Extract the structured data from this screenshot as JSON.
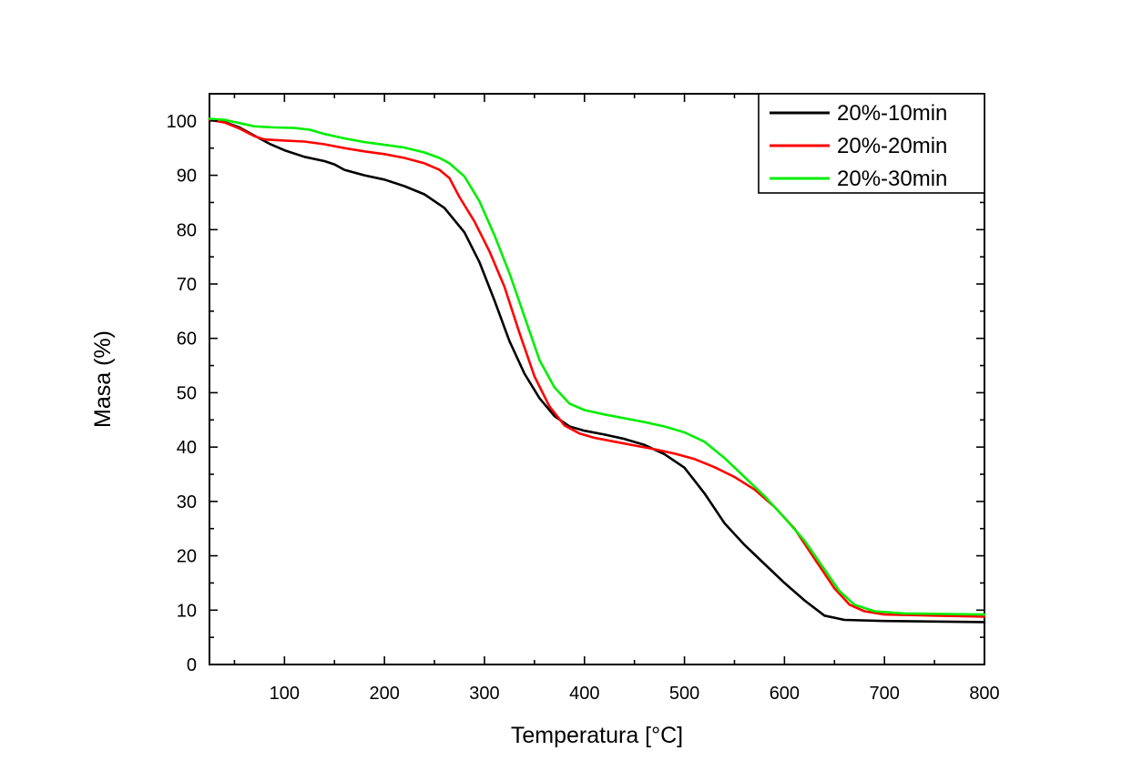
{
  "chart_data": {
    "type": "line",
    "title": "",
    "xlabel": "Temperatura [°C]",
    "ylabel": "Masa (%)",
    "xlim": [
      25,
      800
    ],
    "ylim": [
      0,
      105
    ],
    "x_ticks": [
      100,
      200,
      300,
      400,
      500,
      600,
      700,
      800
    ],
    "y_ticks": [
      0,
      10,
      20,
      30,
      40,
      50,
      60,
      70,
      80,
      90,
      100
    ],
    "grid": false,
    "legend_position": "top-right",
    "series": [
      {
        "name": "20%-10min",
        "color": "#000000",
        "points": [
          [
            25,
            100.3
          ],
          [
            40,
            99.8
          ],
          [
            55,
            98.8
          ],
          [
            70,
            97.3
          ],
          [
            85,
            95.8
          ],
          [
            100,
            94.6
          ],
          [
            120,
            93.4
          ],
          [
            140,
            92.6
          ],
          [
            150,
            92.0
          ],
          [
            160,
            91.0
          ],
          [
            180,
            90.0
          ],
          [
            200,
            89.2
          ],
          [
            220,
            88.0
          ],
          [
            240,
            86.5
          ],
          [
            260,
            84.0
          ],
          [
            280,
            79.5
          ],
          [
            295,
            74.0
          ],
          [
            310,
            67.0
          ],
          [
            325,
            59.5
          ],
          [
            340,
            53.5
          ],
          [
            355,
            49.0
          ],
          [
            370,
            45.7
          ],
          [
            385,
            43.8
          ],
          [
            400,
            43.0
          ],
          [
            420,
            42.3
          ],
          [
            440,
            41.5
          ],
          [
            460,
            40.4
          ],
          [
            480,
            38.7
          ],
          [
            500,
            36.2
          ],
          [
            520,
            31.5
          ],
          [
            540,
            26.0
          ],
          [
            560,
            22.0
          ],
          [
            580,
            18.5
          ],
          [
            600,
            15.0
          ],
          [
            620,
            11.8
          ],
          [
            640,
            9.0
          ],
          [
            660,
            8.2
          ],
          [
            700,
            8.0
          ],
          [
            750,
            7.9
          ],
          [
            800,
            7.8
          ]
        ]
      },
      {
        "name": "20%-20min",
        "color": "#ff0000",
        "points": [
          [
            25,
            100.2
          ],
          [
            40,
            99.7
          ],
          [
            55,
            98.6
          ],
          [
            70,
            97.2
          ],
          [
            80,
            96.6
          ],
          [
            100,
            96.4
          ],
          [
            120,
            96.2
          ],
          [
            140,
            95.7
          ],
          [
            160,
            95.0
          ],
          [
            180,
            94.4
          ],
          [
            200,
            93.9
          ],
          [
            220,
            93.2
          ],
          [
            240,
            92.2
          ],
          [
            255,
            91.0
          ],
          [
            265,
            89.5
          ],
          [
            275,
            86.0
          ],
          [
            290,
            81.5
          ],
          [
            305,
            76.0
          ],
          [
            320,
            69.5
          ],
          [
            335,
            61.0
          ],
          [
            350,
            53.0
          ],
          [
            365,
            47.5
          ],
          [
            380,
            44.0
          ],
          [
            395,
            42.5
          ],
          [
            410,
            41.7
          ],
          [
            430,
            41.0
          ],
          [
            450,
            40.3
          ],
          [
            470,
            39.6
          ],
          [
            490,
            38.8
          ],
          [
            510,
            37.8
          ],
          [
            530,
            36.3
          ],
          [
            550,
            34.5
          ],
          [
            570,
            32.2
          ],
          [
            590,
            29.0
          ],
          [
            610,
            25.0
          ],
          [
            630,
            19.5
          ],
          [
            650,
            14.0
          ],
          [
            665,
            11.0
          ],
          [
            680,
            9.8
          ],
          [
            700,
            9.2
          ],
          [
            750,
            9.0
          ],
          [
            800,
            8.8
          ]
        ]
      },
      {
        "name": "20%-30min",
        "color": "#00ee00",
        "points": [
          [
            25,
            100.4
          ],
          [
            40,
            100.2
          ],
          [
            55,
            99.6
          ],
          [
            70,
            99.0
          ],
          [
            90,
            98.8
          ],
          [
            110,
            98.7
          ],
          [
            125,
            98.4
          ],
          [
            140,
            97.6
          ],
          [
            160,
            96.8
          ],
          [
            180,
            96.1
          ],
          [
            200,
            95.6
          ],
          [
            220,
            95.1
          ],
          [
            240,
            94.2
          ],
          [
            255,
            93.2
          ],
          [
            265,
            92.2
          ],
          [
            280,
            89.8
          ],
          [
            295,
            85.2
          ],
          [
            310,
            79.0
          ],
          [
            325,
            72.0
          ],
          [
            340,
            64.0
          ],
          [
            355,
            56.0
          ],
          [
            370,
            51.0
          ],
          [
            385,
            48.0
          ],
          [
            400,
            46.8
          ],
          [
            420,
            46.0
          ],
          [
            440,
            45.3
          ],
          [
            460,
            44.6
          ],
          [
            480,
            43.8
          ],
          [
            500,
            42.7
          ],
          [
            520,
            41.0
          ],
          [
            540,
            38.0
          ],
          [
            560,
            34.5
          ],
          [
            580,
            31.0
          ],
          [
            600,
            27.0
          ],
          [
            620,
            22.8
          ],
          [
            640,
            17.5
          ],
          [
            655,
            13.5
          ],
          [
            670,
            11.0
          ],
          [
            690,
            9.8
          ],
          [
            720,
            9.4
          ],
          [
            760,
            9.3
          ],
          [
            800,
            9.2
          ]
        ]
      }
    ]
  }
}
